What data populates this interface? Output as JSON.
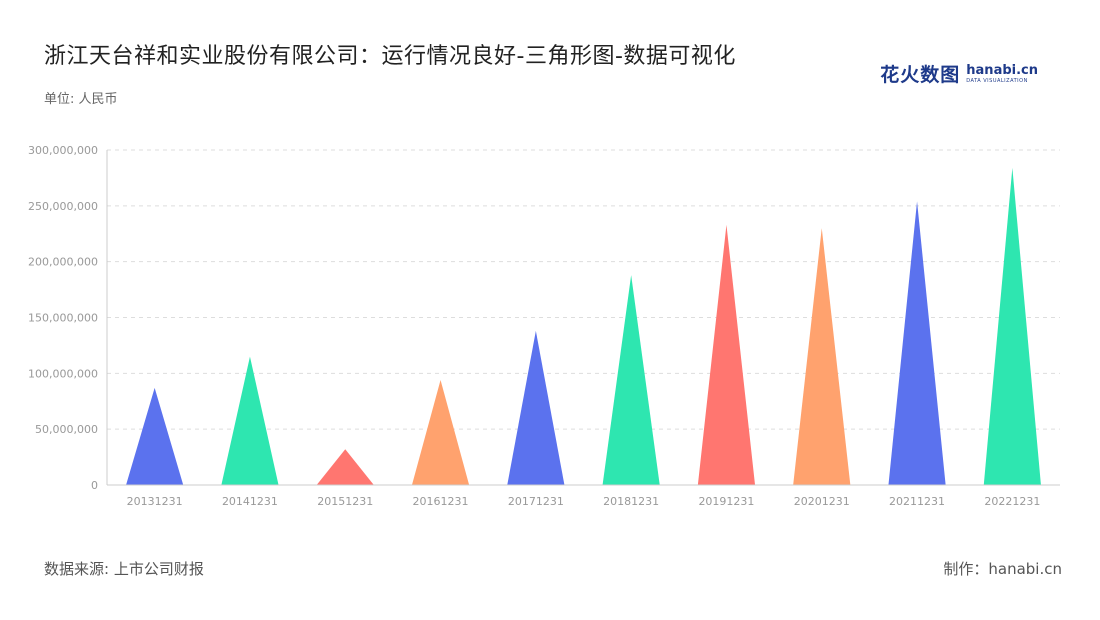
{
  "title": "浙江天台祥和实业股份有限公司：运行情况良好-三角形图-数据可视化",
  "unit": "单位: 人民币",
  "logo": {
    "main": "花火数图",
    "en": "hanabi.cn",
    "sub": "DATA VISUALIZATION"
  },
  "footer": {
    "source": "数据来源: 上市公司财报",
    "maker": "制作：hanabi.cn"
  },
  "colors": [
    "#5b72ee",
    "#2ee6b0",
    "#ff7670",
    "#ffa26e"
  ],
  "chart_data": {
    "type": "bar",
    "shape": "triangle",
    "categories": [
      "20131231",
      "20141231",
      "20151231",
      "20161231",
      "20171231",
      "20181231",
      "20191231",
      "20201231",
      "20211231",
      "20221231"
    ],
    "values": [
      87000000,
      115000000,
      32000000,
      94000000,
      138000000,
      188000000,
      233000000,
      230000000,
      254000000,
      284000000
    ],
    "ylim": [
      0,
      300000000
    ],
    "yticks": [
      0,
      50000000,
      100000000,
      150000000,
      200000000,
      250000000,
      300000000
    ],
    "ytick_labels": [
      "0",
      "50,000,000",
      "100,000,000",
      "150,000,000",
      "200,000,000",
      "250,000,000",
      "300,000,000"
    ],
    "grid": true
  }
}
